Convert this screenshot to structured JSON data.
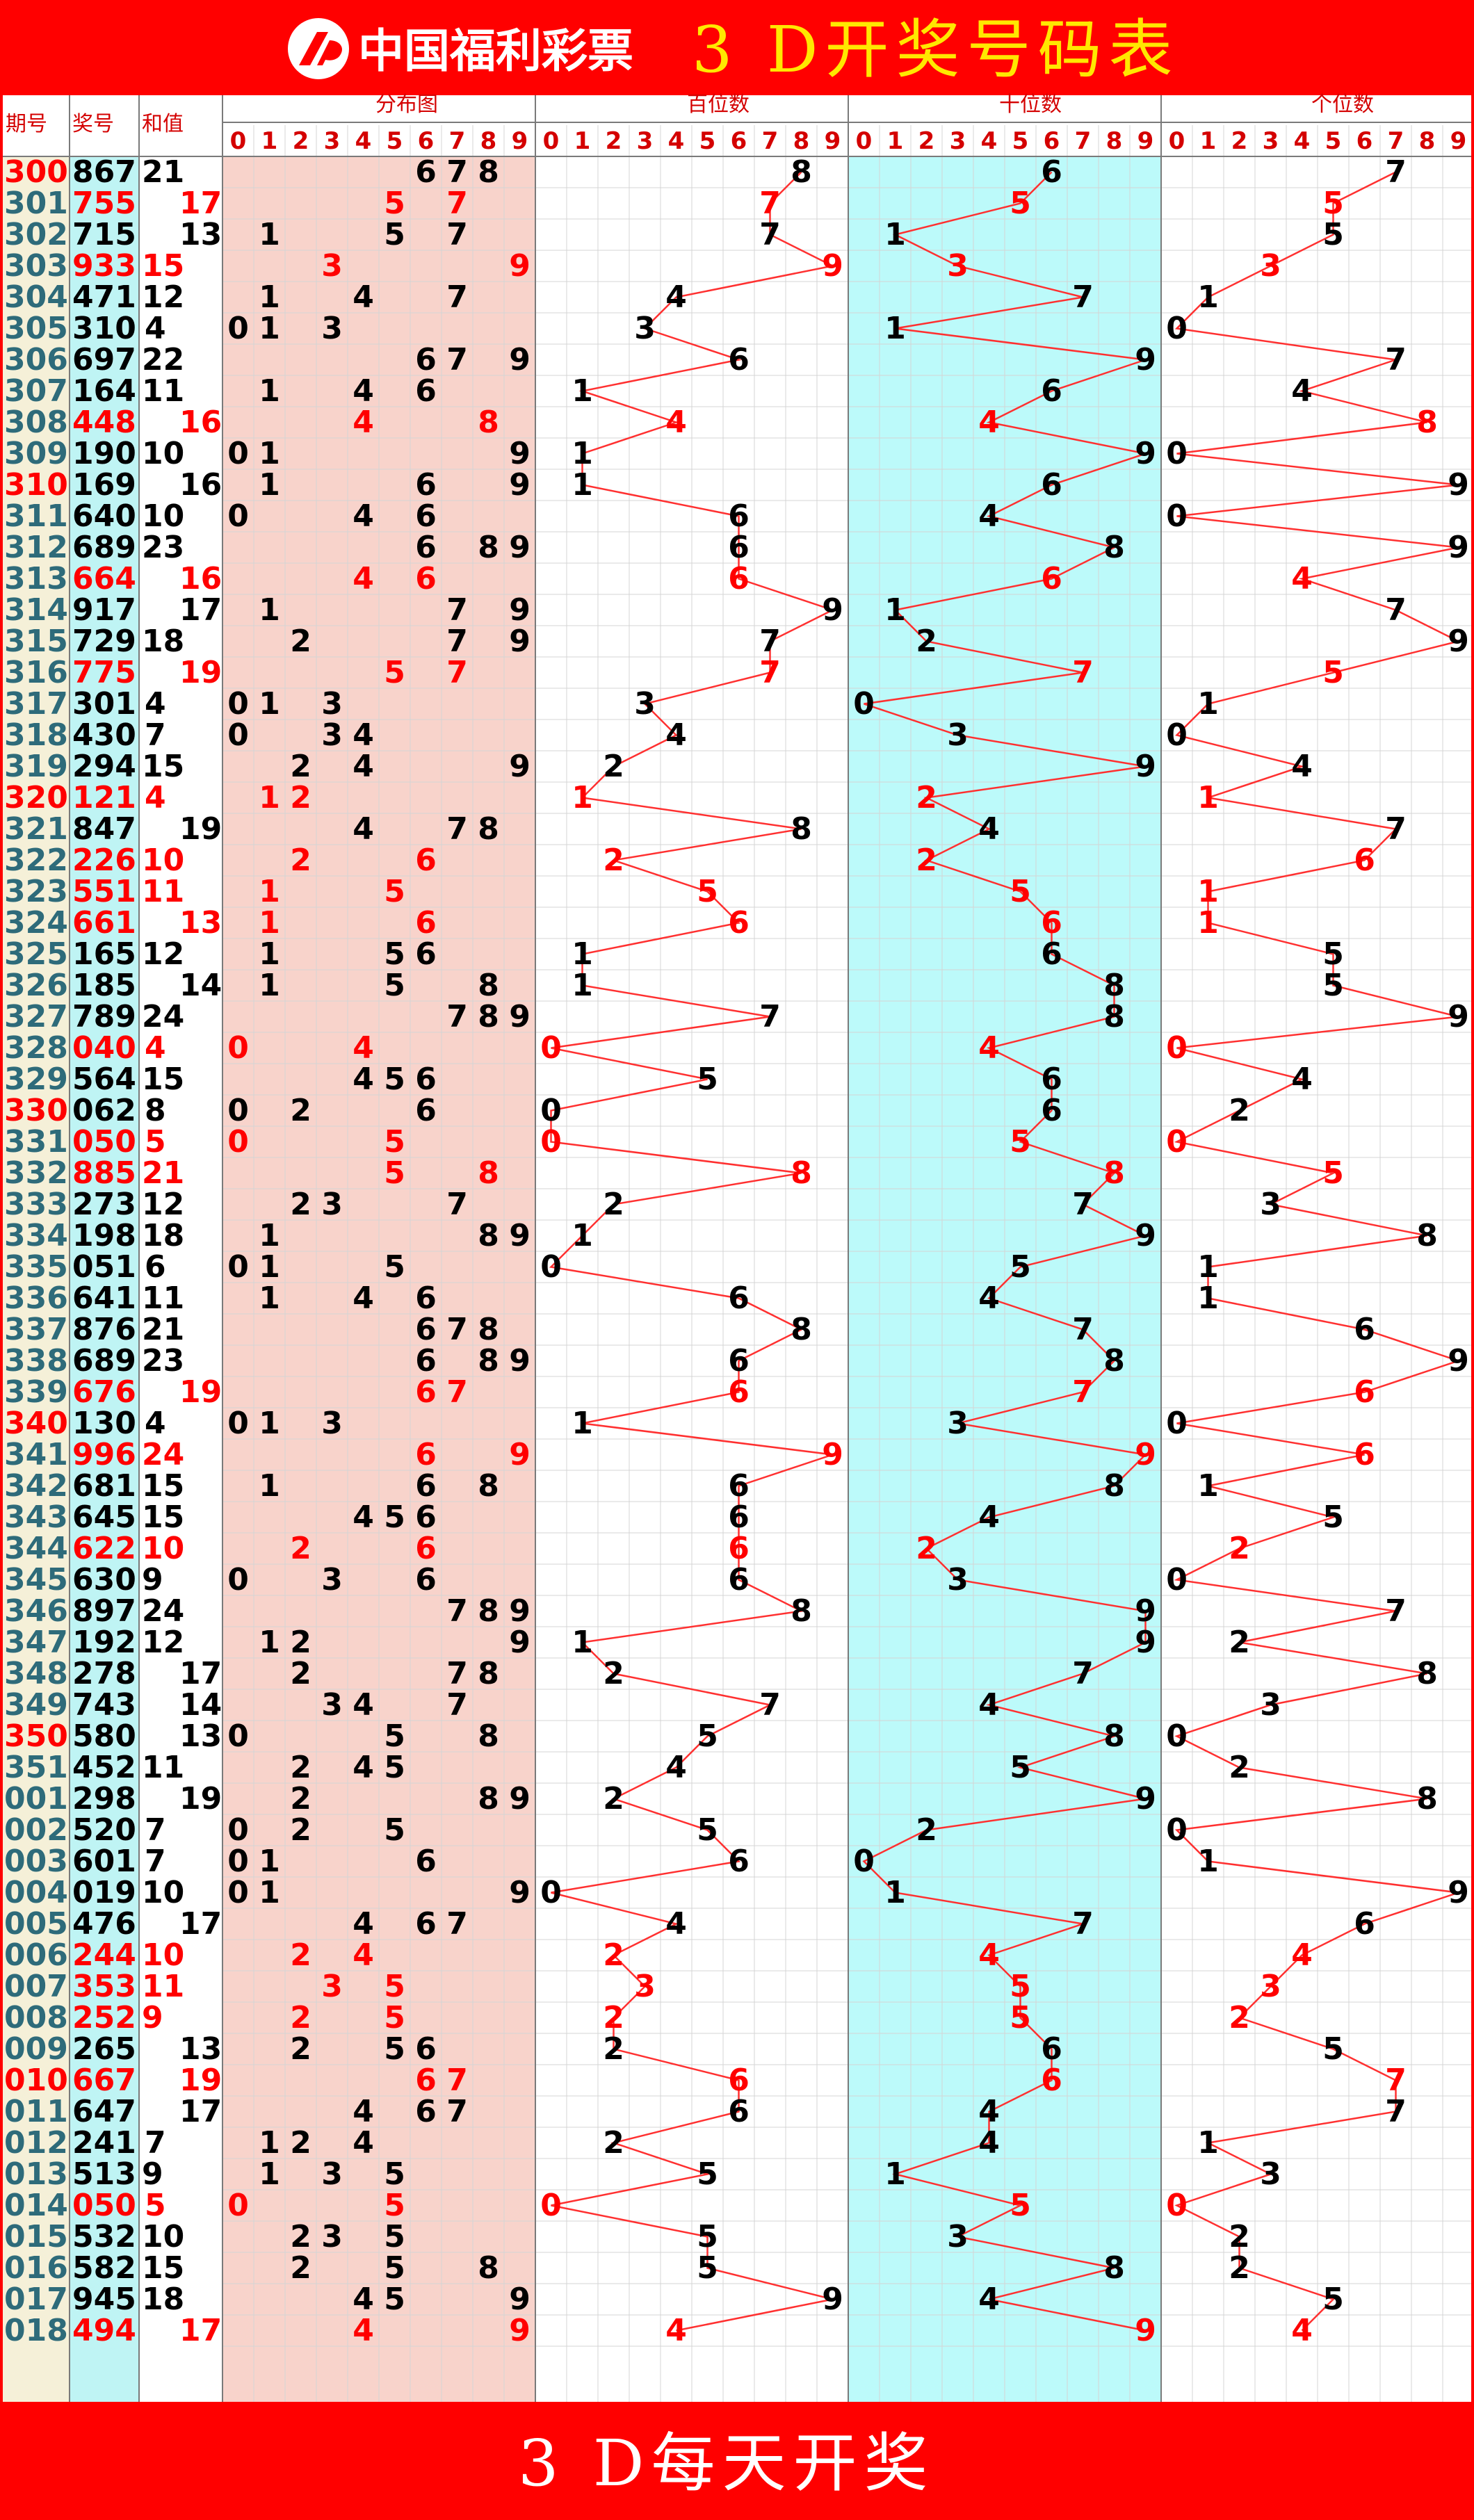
{
  "header": {
    "brand": "中国福利彩票",
    "title": "3 D开奖号码表"
  },
  "footer": {
    "title": "3 D每天开奖"
  },
  "columns": {
    "period": "期号",
    "number": "奖号",
    "sum": "和值",
    "distribution": "分布图",
    "hundreds": "百位数",
    "tens": "十位数",
    "units": "个位数"
  },
  "digits": [
    "0",
    "1",
    "2",
    "3",
    "4",
    "5",
    "6",
    "7",
    "8",
    "9"
  ],
  "colors": {
    "frame_red": "#ff0000",
    "text_red": "#ff0000",
    "text_black": "#000000",
    "period_black": "#2e6b7a",
    "period_bg": "#f5f0d8",
    "number_bg": "#bff4f4",
    "distribution_bg": "#f8d3cb",
    "tens_bg": "#bcfafa",
    "line": "#ff3030",
    "grid": "#d4d4d4"
  },
  "chart_data": {
    "type": "table",
    "draws": [
      {
        "period": "300",
        "number": "867",
        "sum": "21"
      },
      {
        "period": "301",
        "number": "755",
        "sum": "17"
      },
      {
        "period": "302",
        "number": "715",
        "sum": "13"
      },
      {
        "period": "303",
        "number": "933",
        "sum": "15"
      },
      {
        "period": "304",
        "number": "471",
        "sum": "12"
      },
      {
        "period": "305",
        "number": "310",
        "sum": "4"
      },
      {
        "period": "306",
        "number": "697",
        "sum": "22"
      },
      {
        "period": "307",
        "number": "164",
        "sum": "11"
      },
      {
        "period": "308",
        "number": "448",
        "sum": "16"
      },
      {
        "period": "309",
        "number": "190",
        "sum": "10"
      },
      {
        "period": "310",
        "number": "169",
        "sum": "16"
      },
      {
        "period": "311",
        "number": "640",
        "sum": "10"
      },
      {
        "period": "312",
        "number": "689",
        "sum": "23"
      },
      {
        "period": "313",
        "number": "664",
        "sum": "16"
      },
      {
        "period": "314",
        "number": "917",
        "sum": "17"
      },
      {
        "period": "315",
        "number": "729",
        "sum": "18"
      },
      {
        "period": "316",
        "number": "775",
        "sum": "19"
      },
      {
        "period": "317",
        "number": "301",
        "sum": "4"
      },
      {
        "period": "318",
        "number": "430",
        "sum": "7"
      },
      {
        "period": "319",
        "number": "294",
        "sum": "15"
      },
      {
        "period": "320",
        "number": "121",
        "sum": "4"
      },
      {
        "period": "321",
        "number": "847",
        "sum": "19"
      },
      {
        "period": "322",
        "number": "226",
        "sum": "10"
      },
      {
        "period": "323",
        "number": "551",
        "sum": "11"
      },
      {
        "period": "324",
        "number": "661",
        "sum": "13"
      },
      {
        "period": "325",
        "number": "165",
        "sum": "12"
      },
      {
        "period": "326",
        "number": "185",
        "sum": "14"
      },
      {
        "period": "327",
        "number": "789",
        "sum": "24"
      },
      {
        "period": "328",
        "number": "040",
        "sum": "4"
      },
      {
        "period": "329",
        "number": "564",
        "sum": "15"
      },
      {
        "period": "330",
        "number": "062",
        "sum": "8"
      },
      {
        "period": "331",
        "number": "050",
        "sum": "5"
      },
      {
        "period": "332",
        "number": "885",
        "sum": "21"
      },
      {
        "period": "333",
        "number": "273",
        "sum": "12"
      },
      {
        "period": "334",
        "number": "198",
        "sum": "18"
      },
      {
        "period": "335",
        "number": "051",
        "sum": "6"
      },
      {
        "period": "336",
        "number": "641",
        "sum": "11"
      },
      {
        "period": "337",
        "number": "876",
        "sum": "21"
      },
      {
        "period": "338",
        "number": "689",
        "sum": "23"
      },
      {
        "period": "339",
        "number": "676",
        "sum": "19"
      },
      {
        "period": "340",
        "number": "130",
        "sum": "4"
      },
      {
        "period": "341",
        "number": "996",
        "sum": "24"
      },
      {
        "period": "342",
        "number": "681",
        "sum": "15"
      },
      {
        "period": "343",
        "number": "645",
        "sum": "15"
      },
      {
        "period": "344",
        "number": "622",
        "sum": "10"
      },
      {
        "period": "345",
        "number": "630",
        "sum": "9"
      },
      {
        "period": "346",
        "number": "897",
        "sum": "24"
      },
      {
        "period": "347",
        "number": "192",
        "sum": "12"
      },
      {
        "period": "348",
        "number": "278",
        "sum": "17"
      },
      {
        "period": "349",
        "number": "743",
        "sum": "14"
      },
      {
        "period": "350",
        "number": "580",
        "sum": "13"
      },
      {
        "period": "351",
        "number": "452",
        "sum": "11"
      },
      {
        "period": "001",
        "number": "298",
        "sum": "19"
      },
      {
        "period": "002",
        "number": "520",
        "sum": "7"
      },
      {
        "period": "003",
        "number": "601",
        "sum": "7"
      },
      {
        "period": "004",
        "number": "019",
        "sum": "10"
      },
      {
        "period": "005",
        "number": "476",
        "sum": "17"
      },
      {
        "period": "006",
        "number": "244",
        "sum": "10"
      },
      {
        "period": "007",
        "number": "353",
        "sum": "11"
      },
      {
        "period": "008",
        "number": "252",
        "sum": "9"
      },
      {
        "period": "009",
        "number": "265",
        "sum": "13"
      },
      {
        "period": "010",
        "number": "667",
        "sum": "19"
      },
      {
        "period": "011",
        "number": "647",
        "sum": "17"
      },
      {
        "period": "012",
        "number": "241",
        "sum": "7"
      },
      {
        "period": "013",
        "number": "513",
        "sum": "9"
      },
      {
        "period": "014",
        "number": "050",
        "sum": "5"
      },
      {
        "period": "015",
        "number": "532",
        "sum": "10"
      },
      {
        "period": "016",
        "number": "582",
        "sum": "15"
      },
      {
        "period": "017",
        "number": "945",
        "sum": "18"
      },
      {
        "period": "018",
        "number": "494",
        "sum": "17"
      }
    ]
  }
}
